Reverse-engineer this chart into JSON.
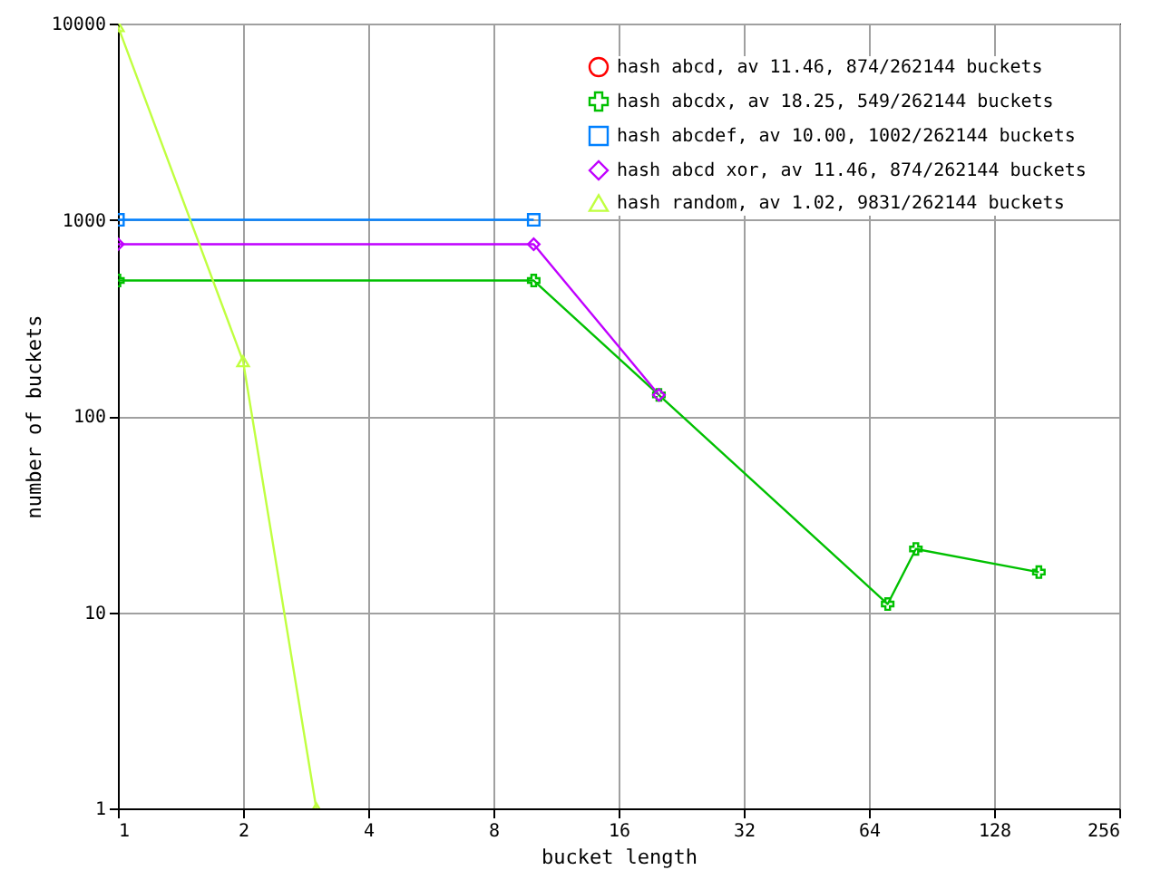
{
  "chart_data": {
    "type": "line",
    "xlabel": "bucket length",
    "ylabel": "number of buckets",
    "log": "xy",
    "xlim": [
      1,
      256
    ],
    "xticks": [
      1,
      2,
      4,
      8,
      16,
      32,
      64,
      128,
      256
    ],
    "ylim": [
      1,
      10000
    ],
    "yticks": [
      1,
      10,
      100,
      1000,
      10000
    ],
    "grid": true,
    "legend": "top right",
    "series": [
      {
        "name": "hash abcd, av 11.46, 874/262144 buckets",
        "color": "#ff0000",
        "marker": "circle"
      },
      {
        "name": "hash abcdx, av 18.25, 549/262144 buckets",
        "color": "#00c000",
        "marker": "cross",
        "x": [
          1,
          10,
          20,
          71,
          83,
          164
        ],
        "values": [
          490,
          490,
          128,
          11,
          21,
          16
        ]
      },
      {
        "name": "hash abcdef, av 10.00, 1002/262144 buckets",
        "color": "#0080ff",
        "marker": "square",
        "x": [
          1,
          10
        ],
        "values": [
          1000,
          1000
        ]
      },
      {
        "name": "hash abcd xor, av 11.46, 874/262144 buckets",
        "color": "#c000ff",
        "marker": "diamond",
        "x": [
          1,
          10,
          20
        ],
        "values": [
          750,
          750,
          128
        ]
      },
      {
        "name": "hash random, av 1.02, 9831/262144 buckets",
        "color": "#c0ff40",
        "marker": "triangle",
        "x": [
          1,
          2,
          3
        ],
        "values": [
          9700,
          190,
          1
        ]
      }
    ]
  }
}
